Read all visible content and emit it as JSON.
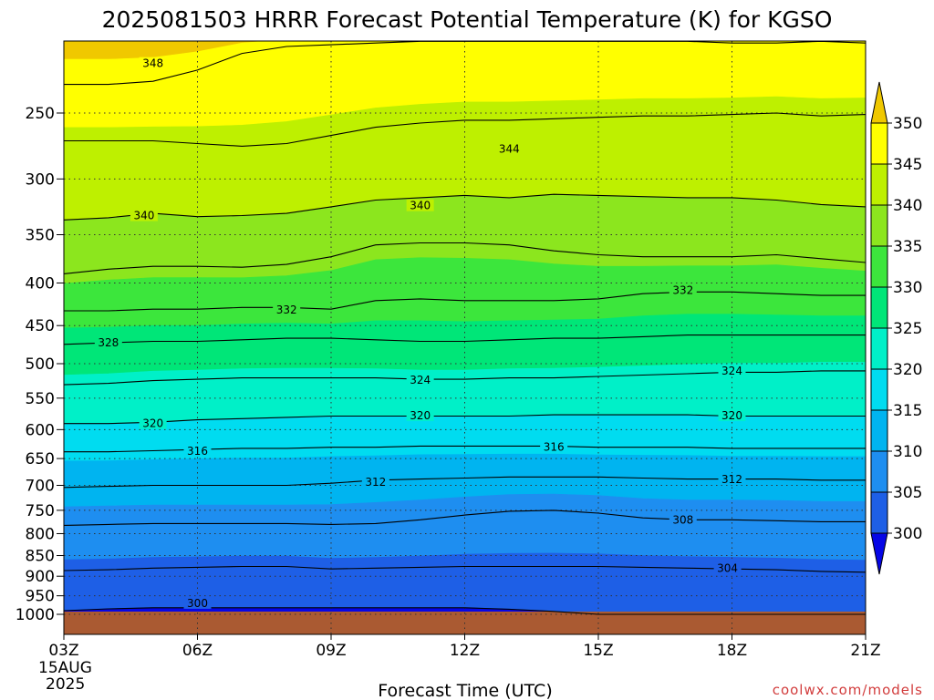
{
  "chart_data": {
    "type": "contour",
    "title": "2025081503 HRRR Forecast Potential Temperature (K) for KGSO",
    "xlabel": "Forecast Time (UTC)",
    "x_ticks": [
      "03Z",
      "06Z",
      "09Z",
      "12Z",
      "15Z",
      "18Z",
      "21Z"
    ],
    "x_start_date": [
      "15AUG",
      "2025"
    ],
    "x_range_hours": [
      3,
      21
    ],
    "y_ticks": [
      250,
      300,
      350,
      400,
      450,
      500,
      550,
      600,
      650,
      700,
      750,
      800,
      850,
      900,
      950,
      1000
    ],
    "y_range_hpa": [
      1010,
      200
    ],
    "y_scale": "log-pressure",
    "colorbar": {
      "levels": [
        300,
        305,
        310,
        315,
        320,
        325,
        330,
        335,
        340,
        345,
        350
      ],
      "tick_labels": [
        "300",
        "305",
        "310",
        "315",
        "320",
        "325",
        "330",
        "335",
        "340",
        "345",
        "350"
      ],
      "colors": [
        "#0606e6",
        "#1e5fe6",
        "#1e8ef0",
        "#00b4f0",
        "#00dcf0",
        "#00f0c8",
        "#00e678",
        "#3ce63c",
        "#8ce61e",
        "#bef000",
        "#ffff00",
        "#f0c800"
      ],
      "extend": "both"
    },
    "ground_color": "#aa5a32",
    "contour_interval": 4,
    "contour_labels": [
      {
        "value": "348",
        "time_hour": 5.0,
        "pressure": 218
      },
      {
        "value": "344",
        "time_hour": 13.0,
        "pressure": 276
      },
      {
        "value": "340",
        "time_hour": 11.0,
        "pressure": 323
      },
      {
        "value": "340",
        "time_hour": 4.8,
        "pressure": 332
      },
      {
        "value": "332",
        "time_hour": 8.0,
        "pressure": 431
      },
      {
        "value": "332",
        "time_hour": 16.9,
        "pressure": 408
      },
      {
        "value": "328",
        "time_hour": 4.0,
        "pressure": 472
      },
      {
        "value": "324",
        "time_hour": 11.0,
        "pressure": 523
      },
      {
        "value": "324",
        "time_hour": 18.0,
        "pressure": 510
      },
      {
        "value": "320",
        "time_hour": 5.0,
        "pressure": 590
      },
      {
        "value": "320",
        "time_hour": 11.0,
        "pressure": 577
      },
      {
        "value": "320",
        "time_hour": 18.0,
        "pressure": 577
      },
      {
        "value": "316",
        "time_hour": 6.0,
        "pressure": 637
      },
      {
        "value": "316",
        "time_hour": 14.0,
        "pressure": 630
      },
      {
        "value": "312",
        "time_hour": 10.0,
        "pressure": 694
      },
      {
        "value": "312",
        "time_hour": 18.0,
        "pressure": 689
      },
      {
        "value": "308",
        "time_hour": 16.9,
        "pressure": 770
      },
      {
        "value": "304",
        "time_hour": 17.9,
        "pressure": 880
      },
      {
        "value": "300",
        "time_hour": 6.0,
        "pressure": 970
      }
    ],
    "isentropes": [
      {
        "theta": 348,
        "pressure_by_hour": [
          231,
          231,
          229,
          222,
          212,
          208,
          207,
          206,
          205,
          205,
          205,
          205,
          205,
          205,
          205,
          206,
          206,
          205,
          206
        ]
      },
      {
        "theta": 344,
        "pressure_by_hour": [
          270,
          270,
          270,
          272,
          274,
          272,
          266,
          260,
          257,
          255,
          255,
          254,
          253,
          252,
          252,
          251,
          250,
          252,
          251
        ]
      },
      {
        "theta": 340,
        "pressure_by_hour": [
          336,
          334,
          330,
          333,
          332,
          330,
          324,
          318,
          316,
          314,
          316,
          313,
          314,
          315,
          316,
          316,
          318,
          322,
          324
        ]
      },
      {
        "theta": 336,
        "pressure_by_hour": [
          390,
          385,
          382,
          382,
          383,
          380,
          372,
          360,
          358,
          358,
          360,
          366,
          370,
          372,
          372,
          372,
          370,
          374,
          378
        ]
      },
      {
        "theta": 332,
        "pressure_by_hour": [
          432,
          432,
          430,
          430,
          428,
          428,
          430,
          420,
          418,
          420,
          420,
          420,
          418,
          412,
          410,
          410,
          412,
          414,
          414
        ]
      },
      {
        "theta": 328,
        "pressure_by_hour": [
          474,
          472,
          470,
          470,
          468,
          466,
          466,
          468,
          470,
          470,
          468,
          466,
          466,
          464,
          462,
          462,
          462,
          462,
          462
        ]
      },
      {
        "theta": 324,
        "pressure_by_hour": [
          530,
          528,
          524,
          522,
          520,
          520,
          520,
          520,
          522,
          522,
          520,
          520,
          518,
          516,
          514,
          512,
          512,
          510,
          510
        ]
      },
      {
        "theta": 320,
        "pressure_by_hour": [
          590,
          590,
          588,
          584,
          582,
          580,
          578,
          578,
          578,
          578,
          578,
          576,
          576,
          576,
          576,
          578,
          578,
          578,
          578
        ]
      },
      {
        "theta": 316,
        "pressure_by_hour": [
          638,
          638,
          636,
          634,
          632,
          632,
          630,
          630,
          628,
          628,
          628,
          628,
          630,
          630,
          630,
          632,
          632,
          632,
          632
        ]
      },
      {
        "theta": 312,
        "pressure_by_hour": [
          704,
          702,
          700,
          700,
          700,
          700,
          696,
          690,
          688,
          686,
          684,
          684,
          684,
          686,
          688,
          688,
          688,
          690,
          690
        ]
      },
      {
        "theta": 308,
        "pressure_by_hour": [
          782,
          780,
          778,
          778,
          778,
          778,
          780,
          778,
          770,
          760,
          752,
          750,
          756,
          766,
          770,
          770,
          772,
          774,
          774
        ]
      },
      {
        "theta": 304,
        "pressure_by_hour": [
          886,
          884,
          880,
          878,
          876,
          876,
          882,
          880,
          878,
          876,
          876,
          876,
          876,
          878,
          880,
          882,
          884,
          888,
          890
        ]
      },
      {
        "theta": 300,
        "pressure_by_hour": [
          990,
          985,
          982,
          982,
          982,
          982,
          982,
          982,
          982,
          982,
          986,
          992,
          1000,
          1000,
          1000,
          1000,
          1000,
          1000,
          1000
        ]
      }
    ]
  },
  "credit": "coolwx.com/models"
}
